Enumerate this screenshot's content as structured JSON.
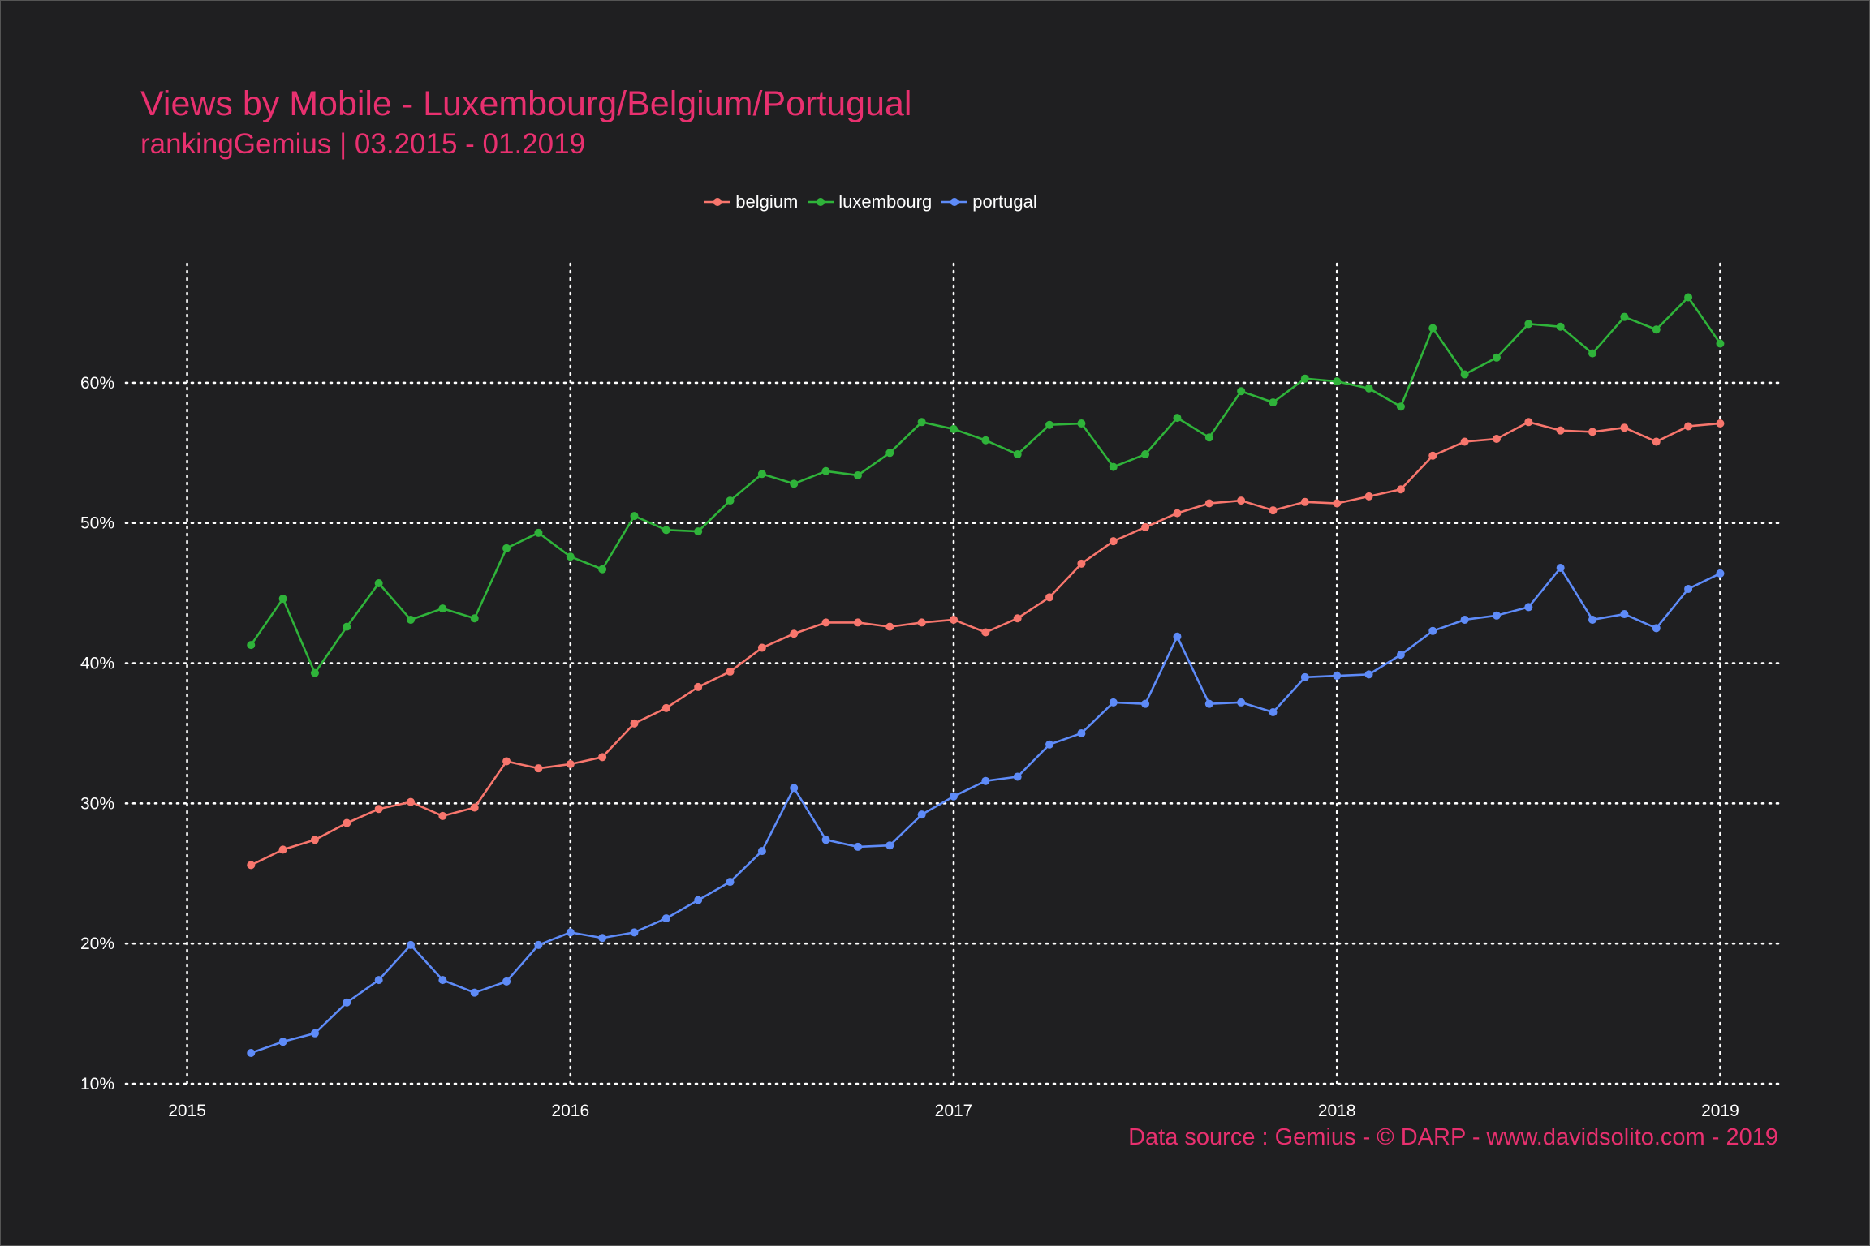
{
  "title": "Views by Mobile - Luxembourg/Belgium/Portugual",
  "subtitle": "rankingGemius | 03.2015 - 01.2019",
  "caption": "Data source : Gemius - © DARP - www.davidsolito.com - 2019",
  "chart_data": {
    "type": "line",
    "x": [
      "2015-03",
      "2015-04",
      "2015-05",
      "2015-06",
      "2015-07",
      "2015-08",
      "2015-09",
      "2015-10",
      "2015-11",
      "2015-12",
      "2016-01",
      "2016-02",
      "2016-03",
      "2016-04",
      "2016-05",
      "2016-06",
      "2016-07",
      "2016-08",
      "2016-09",
      "2016-10",
      "2016-11",
      "2016-12",
      "2017-01",
      "2017-02",
      "2017-03",
      "2017-04",
      "2017-05",
      "2017-06",
      "2017-07",
      "2017-08",
      "2017-09",
      "2017-10",
      "2017-11",
      "2017-12",
      "2018-01",
      "2018-02",
      "2018-03",
      "2018-04",
      "2018-05",
      "2018-06",
      "2018-07",
      "2018-08",
      "2018-09",
      "2018-10",
      "2018-11",
      "2018-12",
      "2019-01"
    ],
    "x_ticks": [
      "2015",
      "2016",
      "2017",
      "2018",
      "2019"
    ],
    "y_ticks": [
      "10%",
      "20%",
      "30%",
      "40%",
      "50%",
      "60%"
    ],
    "ylim": [
      10,
      68.5
    ],
    "grid": true,
    "legend_position": "top-center",
    "series": [
      {
        "name": "belgium",
        "color": "#f8766d",
        "values": [
          25.6,
          26.7,
          27.4,
          28.6,
          29.6,
          30.1,
          29.1,
          29.7,
          33.0,
          32.5,
          32.8,
          33.3,
          35.7,
          36.8,
          38.3,
          39.4,
          41.1,
          42.1,
          42.9,
          42.9,
          42.6,
          42.9,
          43.1,
          42.2,
          43.2,
          44.7,
          47.1,
          48.7,
          49.7,
          50.7,
          51.4,
          51.6,
          50.9,
          51.5,
          51.4,
          51.9,
          52.4,
          54.8,
          55.8,
          56.0,
          57.2,
          56.6,
          56.5,
          56.8,
          55.8,
          56.9,
          57.1
        ]
      },
      {
        "name": "luxembourg",
        "color": "#2fb33a",
        "values": [
          41.3,
          44.6,
          39.3,
          42.6,
          45.7,
          43.1,
          43.9,
          43.2,
          48.2,
          49.3,
          47.6,
          46.7,
          50.5,
          49.5,
          49.4,
          51.6,
          53.5,
          52.8,
          53.7,
          53.4,
          55.0,
          57.2,
          56.7,
          55.9,
          54.9,
          57.0,
          57.1,
          54.0,
          54.9,
          57.5,
          56.1,
          59.4,
          58.6,
          60.3,
          60.1,
          59.6,
          58.3,
          63.9,
          60.6,
          61.8,
          64.2,
          64.0,
          62.1,
          64.7,
          63.8,
          66.1,
          62.8
        ]
      },
      {
        "name": "portugal",
        "color": "#5e8bf8",
        "values": [
          12.2,
          13.0,
          13.6,
          15.8,
          17.4,
          19.9,
          17.4,
          16.5,
          17.3,
          19.9,
          20.8,
          20.4,
          20.8,
          21.8,
          23.1,
          24.4,
          26.6,
          31.1,
          27.4,
          26.9,
          27.0,
          29.2,
          30.5,
          31.6,
          31.9,
          34.2,
          35.0,
          37.2,
          37.1,
          41.9,
          37.1,
          37.2,
          36.5,
          39.0,
          39.1,
          39.2,
          40.6,
          42.3,
          43.1,
          43.4,
          44.0,
          46.8,
          43.1,
          43.5,
          42.5,
          45.3,
          46.4
        ]
      }
    ]
  }
}
